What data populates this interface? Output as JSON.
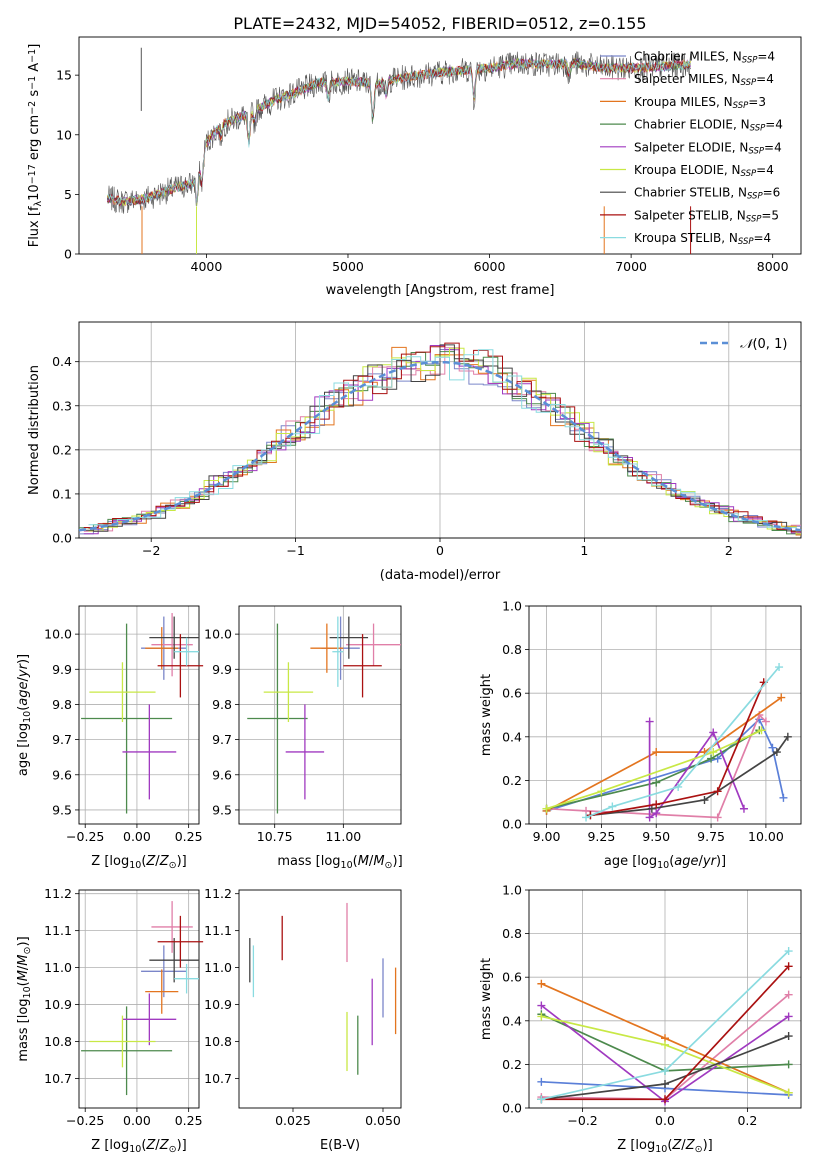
{
  "title": "PLATE=2432, MJD=54052, FIBERID=0512, z=0.155",
  "chart_data": [
    {
      "id": "spectrum",
      "type": "line",
      "xlabel": "wavelength [Angstrom, rest frame]",
      "ylabel": "Flux [f_λ 10^-17 erg cm^-2 s^-1 A^-1]",
      "xlim": [
        3100,
        8200
      ],
      "ylim": [
        0,
        18.2
      ],
      "xticks": [
        4000,
        5000,
        6000,
        7000,
        8000
      ],
      "yticks": [
        0,
        5,
        10,
        15
      ],
      "grid": false,
      "legend_position": "right",
      "series": [
        {
          "name": "Chabrier MILES, N_SSP=4",
          "color": "#7b86c9"
        },
        {
          "name": "Salpeter MILES, N_SSP=4",
          "color": "#e07fa8"
        },
        {
          "name": "Kroupa MILES, N_SSP=3",
          "color": "#e3751f"
        },
        {
          "name": "Chabrier ELODIE, N_SSP=4",
          "color": "#4d8a4d"
        },
        {
          "name": "Salpeter ELODIE, N_SSP=4",
          "color": "#a03ac0"
        },
        {
          "name": "Kroupa ELODIE, N_SSP=4",
          "color": "#c8e845"
        },
        {
          "name": "Chabrier STELIB, N_SSP=6",
          "color": "#444444"
        },
        {
          "name": "Salpeter STELIB, N_SSP=5",
          "color": "#aa1111"
        },
        {
          "name": "Kroupa STELIB, N_SSP=4",
          "color": "#8adbe0"
        }
      ],
      "continuum": {
        "x": [
          3300,
          3400,
          3550,
          3700,
          3800,
          3900,
          3950,
          4000,
          4100,
          4200,
          4300,
          4400,
          4500,
          4600,
          4700,
          4800,
          4900,
          5000,
          5100,
          5200,
          5300,
          5500,
          5700,
          5900,
          6000,
          6200,
          6400,
          6600,
          6800,
          7000,
          7200,
          7400
        ],
        "y": [
          4.7,
          4.4,
          4.6,
          5.2,
          5.6,
          5.9,
          7.2,
          9.3,
          10.8,
          11.3,
          11.8,
          12.4,
          13.0,
          13.4,
          13.9,
          14.4,
          14.4,
          14.5,
          14.4,
          14.2,
          14.6,
          15.0,
          15.3,
          15.5,
          15.6,
          16.0,
          15.9,
          16.0,
          15.6,
          15.6,
          15.7,
          15.9
        ]
      }
    },
    {
      "id": "residuals",
      "type": "histogram",
      "xlabel": "(data-model)/error",
      "ylabel": "Normed distribution",
      "xlim": [
        -2.5,
        2.5
      ],
      "ylim": [
        0,
        0.49
      ],
      "xticks": [
        -2,
        -1,
        0,
        1,
        2
      ],
      "yticks": [
        0.0,
        0.1,
        0.2,
        0.3,
        0.4
      ],
      "grid": true,
      "legend": [
        "N(0,1)"
      ],
      "legend_position": "top-right"
    },
    {
      "id": "age-vs-Z",
      "type": "errorbar",
      "xlabel": "Z [log10(Z/Z☉)]",
      "ylabel": "age [log10(age/yr)]",
      "xlim": [
        -0.28,
        0.3
      ],
      "ylim": [
        9.46,
        10.08
      ],
      "xticks": [
        -0.25,
        0.0,
        0.25
      ],
      "yticks": [
        9.5,
        9.6,
        9.7,
        9.8,
        9.9,
        10.0
      ],
      "grid": true,
      "points": [
        {
          "x": 0.13,
          "y": 9.96,
          "xerr": 0.11,
          "yerr": 0.09,
          "color": "#7b86c9"
        },
        {
          "x": 0.17,
          "y": 9.97,
          "xerr": 0.1,
          "yerr": 0.09,
          "color": "#e07fa8"
        },
        {
          "x": 0.12,
          "y": 9.96,
          "xerr": 0.08,
          "yerr": 0.06,
          "color": "#e3751f"
        },
        {
          "x": -0.05,
          "y": 9.76,
          "xerr": 0.22,
          "yerr": 0.27,
          "color": "#4d8a4d"
        },
        {
          "x": 0.06,
          "y": 9.665,
          "xerr": 0.13,
          "yerr": 0.135,
          "color": "#a03ac0"
        },
        {
          "x": -0.07,
          "y": 9.835,
          "xerr": 0.16,
          "yerr": 0.085,
          "color": "#c8e845"
        },
        {
          "x": 0.18,
          "y": 9.99,
          "xerr": 0.12,
          "yerr": 0.06,
          "color": "#444444"
        },
        {
          "x": 0.21,
          "y": 9.91,
          "xerr": 0.11,
          "yerr": 0.09,
          "color": "#aa1111"
        },
        {
          "x": 0.24,
          "y": 9.95,
          "xerr": 0.06,
          "yerr": 0.04,
          "color": "#8adbe0"
        }
      ]
    },
    {
      "id": "age-vs-mass",
      "type": "errorbar",
      "xlabel": "mass [log10(M/M☉)]",
      "ylabel": "",
      "xlim": [
        10.62,
        11.21
      ],
      "ylim": [
        9.46,
        10.08
      ],
      "xticks": [
        10.75,
        11.0
      ],
      "yticks": [
        9.5,
        9.6,
        9.7,
        9.8,
        9.9,
        10.0
      ],
      "grid": true,
      "points": [
        {
          "x": 10.99,
          "y": 9.96,
          "xerr": 0.07,
          "yerr": 0.09,
          "color": "#7b86c9"
        },
        {
          "x": 11.11,
          "y": 9.97,
          "xerr": 0.1,
          "yerr": 0.06,
          "color": "#e07fa8"
        },
        {
          "x": 10.94,
          "y": 9.96,
          "xerr": 0.06,
          "yerr": 0.07,
          "color": "#e3751f"
        },
        {
          "x": 10.76,
          "y": 9.76,
          "xerr": 0.11,
          "yerr": 0.27,
          "color": "#4d8a4d"
        },
        {
          "x": 10.86,
          "y": 9.665,
          "xerr": 0.07,
          "yerr": 0.135,
          "color": "#a03ac0"
        },
        {
          "x": 10.8,
          "y": 9.835,
          "xerr": 0.09,
          "yerr": 0.085,
          "color": "#c8e845"
        },
        {
          "x": 11.02,
          "y": 9.99,
          "xerr": 0.07,
          "yerr": 0.06,
          "color": "#444444"
        },
        {
          "x": 11.07,
          "y": 9.91,
          "xerr": 0.07,
          "yerr": 0.09,
          "color": "#aa1111"
        },
        {
          "x": 10.98,
          "y": 9.95,
          "xerr": 0.02,
          "yerr": 0.1,
          "color": "#8adbe0"
        }
      ]
    },
    {
      "id": "weight-vs-age",
      "type": "line",
      "xlabel": "age [log10(age/yr)]",
      "ylabel": "mass weight",
      "xlim": [
        8.92,
        10.16
      ],
      "ylim": [
        0,
        1
      ],
      "xticks": [
        9.0,
        9.25,
        9.5,
        9.75,
        10.0
      ],
      "yticks": [
        0.0,
        0.2,
        0.4,
        0.6,
        0.8,
        1.0
      ],
      "grid": true,
      "series": [
        {
          "x": [
            9.0,
            9.78,
            9.97,
            10.03,
            10.08
          ],
          "y": [
            0.06,
            0.3,
            0.48,
            0.35,
            0.12
          ],
          "color": "#5a7fd8"
        },
        {
          "x": [
            9.0,
            9.18,
            9.78,
            9.97,
            10.0
          ],
          "y": [
            0.07,
            0.06,
            0.03,
            0.5,
            0.47
          ],
          "color": "#e07fa8"
        },
        {
          "x": [
            9.0,
            9.5,
            9.72,
            10.07
          ],
          "y": [
            0.06,
            0.33,
            0.33,
            0.58
          ],
          "color": "#e3751f"
        },
        {
          "x": [
            9.0,
            9.5,
            9.75,
            9.97
          ],
          "y": [
            0.07,
            0.19,
            0.3,
            0.43
          ],
          "color": "#4d8a4d"
        },
        {
          "x": [
            9.47,
            9.47,
            9.5,
            9.76,
            9.9
          ],
          "y": [
            0.47,
            0.03,
            0.05,
            0.42,
            0.07
          ],
          "color": "#a03ac0"
        },
        {
          "x": [
            9.0,
            9.25,
            9.76,
            9.98
          ],
          "y": [
            0.07,
            0.15,
            0.33,
            0.43
          ],
          "color": "#c8e845"
        },
        {
          "x": [
            9.2,
            9.48,
            9.72,
            10.05,
            10.1
          ],
          "y": [
            0.04,
            0.07,
            0.11,
            0.33,
            0.4
          ],
          "color": "#444444"
        },
        {
          "x": [
            9.2,
            9.5,
            9.78,
            9.99
          ],
          "y": [
            0.04,
            0.09,
            0.15,
            0.65
          ],
          "color": "#aa1111"
        },
        {
          "x": [
            9.18,
            9.3,
            9.6,
            10.06
          ],
          "y": [
            0.03,
            0.08,
            0.17,
            0.72
          ],
          "color": "#8adbe0"
        }
      ]
    },
    {
      "id": "mass-vs-Z",
      "type": "errorbar",
      "xlabel": "Z [log10(Z/Z☉)]",
      "ylabel": "mass [log10(M/M☉)]",
      "xlim": [
        -0.28,
        0.3
      ],
      "ylim": [
        10.62,
        11.21
      ],
      "xticks": [
        -0.25,
        0.0,
        0.25
      ],
      "yticks": [
        10.7,
        10.8,
        10.9,
        11.0,
        11.1,
        11.2
      ],
      "grid": true,
      "points": [
        {
          "x": 0.13,
          "y": 10.99,
          "xerr": 0.11,
          "yerr": 0.07,
          "color": "#7b86c9"
        },
        {
          "x": 0.17,
          "y": 11.11,
          "xerr": 0.1,
          "yerr": 0.07,
          "color": "#e07fa8"
        },
        {
          "x": 0.12,
          "y": 10.935,
          "xerr": 0.08,
          "yerr": 0.06,
          "color": "#e3751f"
        },
        {
          "x": -0.05,
          "y": 10.775,
          "xerr": 0.22,
          "yerr": 0.12,
          "color": "#4d8a4d"
        },
        {
          "x": 0.06,
          "y": 10.86,
          "xerr": 0.13,
          "yerr": 0.07,
          "color": "#a03ac0"
        },
        {
          "x": -0.07,
          "y": 10.8,
          "xerr": 0.16,
          "yerr": 0.07,
          "color": "#c8e845"
        },
        {
          "x": 0.18,
          "y": 11.02,
          "xerr": 0.12,
          "yerr": 0.06,
          "color": "#444444"
        },
        {
          "x": 0.21,
          "y": 11.07,
          "xerr": 0.11,
          "yerr": 0.07,
          "color": "#aa1111"
        },
        {
          "x": 0.24,
          "y": 10.97,
          "xerr": 0.06,
          "yerr": 0.04,
          "color": "#8adbe0"
        }
      ]
    },
    {
      "id": "mass-vs-EBV",
      "type": "errorbar",
      "xlabel": "E(B-V)",
      "ylabel": "",
      "xlim": [
        0.01,
        0.055
      ],
      "ylim": [
        10.62,
        11.21
      ],
      "xticks": [
        0.025,
        0.05
      ],
      "yticks": [
        10.7,
        10.8,
        10.9,
        11.0,
        11.1,
        11.2
      ],
      "grid": false,
      "points": [
        {
          "x": 0.05,
          "y": 10.945,
          "yerr": 0.08,
          "color": "#7b86c9"
        },
        {
          "x": 0.04,
          "y": 11.095,
          "yerr": 0.08,
          "color": "#e07fa8"
        },
        {
          "x": 0.0535,
          "y": 10.91,
          "yerr": 0.09,
          "color": "#e3751f"
        },
        {
          "x": 0.043,
          "y": 10.79,
          "yerr": 0.08,
          "color": "#4d8a4d"
        },
        {
          "x": 0.047,
          "y": 10.88,
          "yerr": 0.09,
          "color": "#a03ac0"
        },
        {
          "x": 0.04,
          "y": 10.8,
          "yerr": 0.08,
          "color": "#c8e845"
        },
        {
          "x": 0.013,
          "y": 11.02,
          "yerr": 0.06,
          "color": "#444444"
        },
        {
          "x": 0.022,
          "y": 11.08,
          "yerr": 0.06,
          "color": "#aa1111"
        },
        {
          "x": 0.014,
          "y": 10.99,
          "yerr": 0.07,
          "color": "#8adbe0"
        }
      ]
    },
    {
      "id": "weight-vs-Z",
      "type": "line",
      "xlabel": "Z [log10(Z/Z☉)]",
      "ylabel": "mass weight",
      "xlim": [
        -0.33,
        0.33
      ],
      "ylim": [
        0,
        1
      ],
      "xticks": [
        -0.2,
        0.0,
        0.2
      ],
      "yticks": [
        0.0,
        0.2,
        0.4,
        0.6,
        0.8,
        1.0
      ],
      "grid": true,
      "series": [
        {
          "x": [
            -0.3,
            0.0,
            0.3
          ],
          "y": [
            0.12,
            0.09,
            0.06
          ],
          "color": "#5a7fd8"
        },
        {
          "x": [
            -0.3,
            0.0,
            0.3
          ],
          "y": [
            0.05,
            0.04,
            0.52
          ],
          "color": "#e07fa8"
        },
        {
          "x": [
            -0.3,
            0.0,
            0.3
          ],
          "y": [
            0.57,
            0.32,
            0.07
          ],
          "color": "#e3751f"
        },
        {
          "x": [
            -0.3,
            0.0,
            0.3
          ],
          "y": [
            0.43,
            0.17,
            0.2
          ],
          "color": "#4d8a4d"
        },
        {
          "x": [
            -0.3,
            0.0,
            0.3
          ],
          "y": [
            0.47,
            0.03,
            0.42
          ],
          "color": "#a03ac0"
        },
        {
          "x": [
            -0.3,
            0.0,
            0.3
          ],
          "y": [
            0.42,
            0.29,
            0.07
          ],
          "color": "#c8e845"
        },
        {
          "x": [
            -0.3,
            0.0,
            0.3
          ],
          "y": [
            0.04,
            0.11,
            0.33
          ],
          "color": "#444444"
        },
        {
          "x": [
            -0.3,
            0.0,
            0.3
          ],
          "y": [
            0.04,
            0.04,
            0.65
          ],
          "color": "#aa1111"
        },
        {
          "x": [
            -0.3,
            0.0,
            0.3
          ],
          "y": [
            0.04,
            0.17,
            0.72
          ],
          "color": "#8adbe0"
        }
      ]
    }
  ]
}
